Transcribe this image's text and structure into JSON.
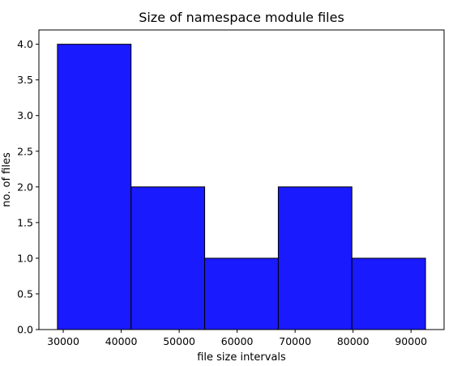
{
  "chart_data": {
    "type": "bar",
    "title": "Size of namespace module files",
    "xlabel": "file size intervals",
    "ylabel": "no. of files",
    "bin_edges": [
      29000,
      41700,
      54400,
      67100,
      79800,
      92500
    ],
    "values": [
      4,
      2,
      1,
      2,
      1
    ],
    "xlim": [
      25800,
      95700
    ],
    "ylim": [
      0,
      4.2
    ],
    "xticks": [
      30000,
      40000,
      50000,
      60000,
      70000,
      80000,
      90000
    ],
    "xtick_labels": [
      "30000",
      "40000",
      "50000",
      "60000",
      "70000",
      "80000",
      "90000"
    ],
    "yticks": [
      0,
      0.5,
      1,
      1.5,
      2,
      2.5,
      3,
      3.5,
      4
    ],
    "ytick_labels": [
      "0.0",
      "0.5",
      "1.0",
      "1.5",
      "2.0",
      "2.5",
      "3.0",
      "3.5",
      "4.0"
    ],
    "grid": false,
    "bar_color": "#1a1aff",
    "edge_color": "#000000"
  }
}
